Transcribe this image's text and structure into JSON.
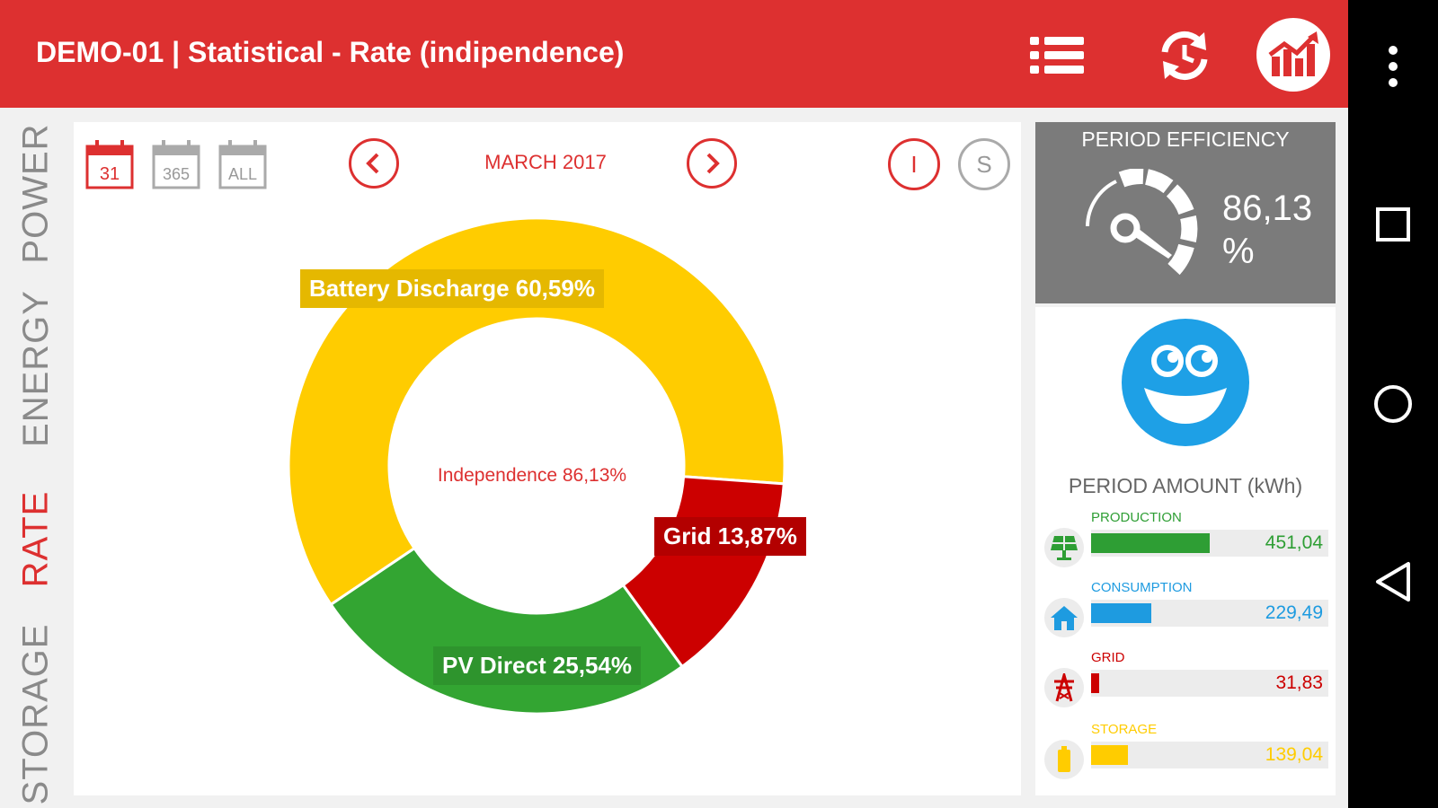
{
  "header": {
    "title": "DEMO-01 | Statistical - Rate (indipendence)",
    "icons": [
      "list-icon",
      "history-refresh-icon",
      "chart-logo-icon"
    ]
  },
  "side_tabs": [
    {
      "label": "POWER",
      "active": false
    },
    {
      "label": "ENERGY",
      "active": false
    },
    {
      "label": "RATE",
      "active": true
    },
    {
      "label": "STORAGE",
      "active": false
    }
  ],
  "toolbar": {
    "calendars": [
      {
        "label": "31",
        "active": true
      },
      {
        "label": "365",
        "active": false
      },
      {
        "label": "ALL",
        "active": false
      }
    ],
    "period": "MARCH 2017",
    "mode_buttons": [
      {
        "label": "I",
        "active": true
      },
      {
        "label": "S",
        "active": false
      }
    ]
  },
  "donut": {
    "center_label": "Independence 86,13%",
    "segments": [
      {
        "label": "Battery Discharge 60,59%",
        "value": 60.59,
        "color": "#ffcc00"
      },
      {
        "label": "Grid 13,87%",
        "value": 13.87,
        "color": "#cc0000"
      },
      {
        "label": "PV Direct 25,54%",
        "value": 25.54,
        "color": "#33a532"
      }
    ]
  },
  "efficiency": {
    "title": "PERIOD EFFICIENCY",
    "value": "86,13",
    "unit": "%"
  },
  "amount": {
    "title": "PERIOD AMOUNT (kWh)",
    "rows": [
      {
        "label": "PRODUCTION",
        "value": "451,04",
        "fraction": 0.5,
        "color": "#2e9e34",
        "icon": "solar-panel-icon"
      },
      {
        "label": "CONSUMPTION",
        "value": "229,49",
        "fraction": 0.254,
        "color": "#1e9be0",
        "icon": "house-icon"
      },
      {
        "label": "GRID",
        "value": "31,83",
        "fraction": 0.035,
        "color": "#cc0000",
        "icon": "power-pylon-icon"
      },
      {
        "label": "STORAGE",
        "value": "139,04",
        "fraction": 0.154,
        "color": "#ffcc00",
        "icon": "battery-icon"
      }
    ]
  },
  "colors": {
    "brand": "#dd3030",
    "panel_gray": "#7b7b7b",
    "smiley": "#1ea0e6"
  },
  "system_nav": [
    "more-vert-icon",
    "recents-icon",
    "home-icon",
    "back-icon"
  ]
}
